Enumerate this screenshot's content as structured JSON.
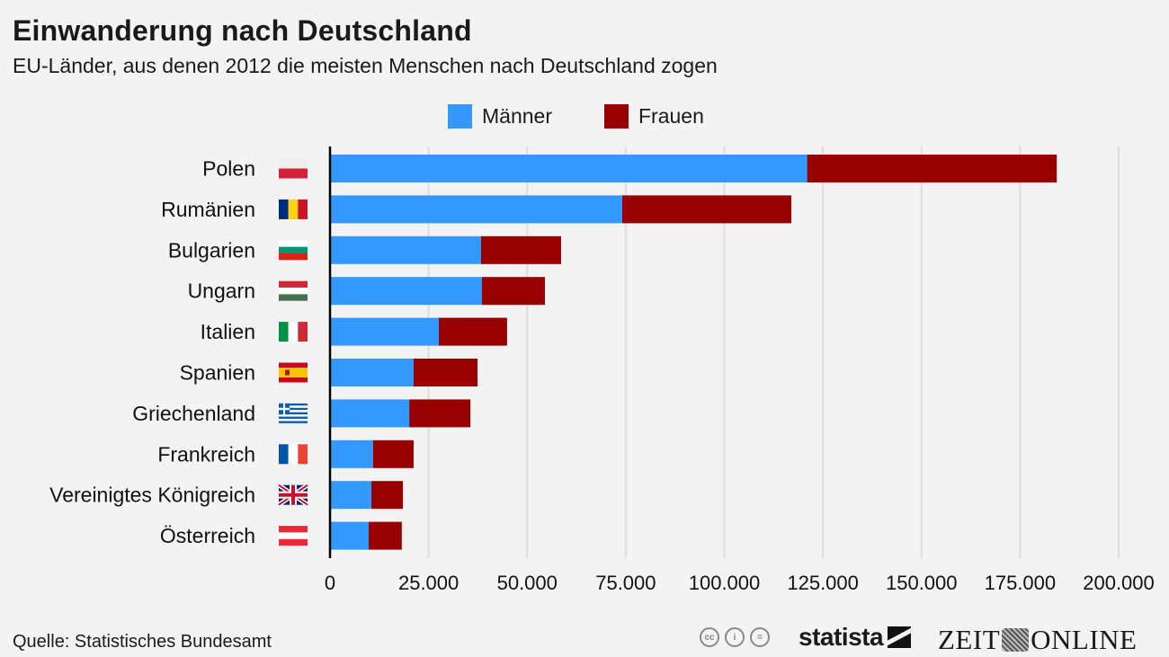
{
  "header": {
    "title": "Einwanderung nach Deutschland",
    "subtitle": "EU-Länder, aus denen 2012 die meisten Menschen nach Deutschland zogen"
  },
  "footer": {
    "source": "Quelle: Statistisches Bundesamt",
    "cc_icons": [
      "cc-icon",
      "by-icon",
      "nd-icon"
    ],
    "cc_labels": [
      "cc",
      "i",
      "="
    ],
    "statista_label": "statista",
    "zeit_left": "ZEIT",
    "zeit_right": "ONLINE"
  },
  "colors": {
    "background": "#f3f3f3",
    "maenner": "#3399ff",
    "frauen": "#990000",
    "grid": "#dddddd",
    "axis": "#000000"
  },
  "chart_data": {
    "type": "bar",
    "orientation": "horizontal",
    "stacked": true,
    "title": "Einwanderung nach Deutschland",
    "subtitle": "EU-Länder, aus denen 2012 die meisten Menschen nach Deutschland zogen",
    "xlabel": "",
    "ylabel": "",
    "xlim": [
      0,
      200000
    ],
    "xticks": [
      0,
      25000,
      50000,
      75000,
      100000,
      125000,
      150000,
      175000,
      200000
    ],
    "xtick_labels": [
      "0",
      "25.000",
      "50.000",
      "75.000",
      "100.000",
      "125.000",
      "150.000",
      "175.000",
      "200.000"
    ],
    "grid": true,
    "legend_position": "top-center",
    "categories": [
      "Polen",
      "Rumänien",
      "Bulgarien",
      "Ungarn",
      "Italien",
      "Spanien",
      "Griechenland",
      "Frankreich",
      "Vereinigtes Königreich",
      "Österreich"
    ],
    "flags": [
      "poland-flag-icon",
      "romania-flag-icon",
      "bulgaria-flag-icon",
      "hungary-flag-icon",
      "italy-flag-icon",
      "spain-flag-icon",
      "greece-flag-icon",
      "france-flag-icon",
      "uk-flag-icon",
      "austria-flag-icon"
    ],
    "series": [
      {
        "name": "Männer",
        "color": "#3399ff",
        "values": [
          121000,
          74100,
          38300,
          38500,
          27600,
          21200,
          20100,
          10900,
          10500,
          9800
        ]
      },
      {
        "name": "Frauen",
        "color": "#990000",
        "values": [
          63300,
          42900,
          20300,
          16000,
          17300,
          16200,
          15500,
          10300,
          8000,
          8400
        ]
      }
    ]
  }
}
